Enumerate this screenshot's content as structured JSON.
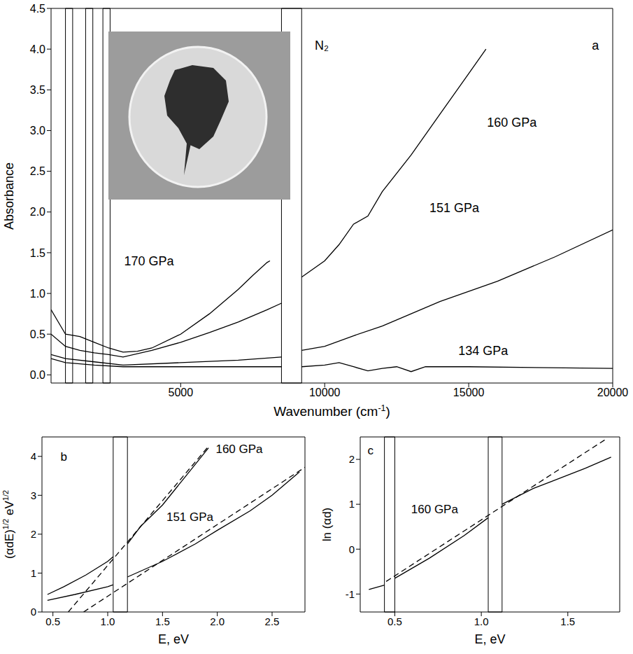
{
  "chart_data": [
    {
      "type": "line",
      "x_label": "Wavenumber (cm-1)",
      "y_label": "Absorbance",
      "grid": false,
      "xlim": [
        500,
        20000
      ],
      "xticks": [
        5000,
        10000,
        15000,
        20000
      ],
      "ylim": [
        -0.1,
        4.5
      ],
      "yticks": [
        {
          "value": 0,
          "label": "0.0"
        },
        0.5,
        {
          "value": 1,
          "label": "1.0"
        },
        1.5,
        {
          "value": 2,
          "label": "2.0"
        },
        2.5,
        {
          "value": 3,
          "label": "3.0"
        },
        3.5,
        {
          "value": 4,
          "label": "4.0"
        },
        4.5
      ],
      "masked_ranges": [
        [
          1000,
          1250
        ],
        [
          1700,
          1950
        ],
        [
          2300,
          2550
        ],
        [
          8500,
          9200
        ]
      ],
      "annotations": [
        {
          "text": "a",
          "x": 19400,
          "y": 4.05
        },
        {
          "text": "N₂",
          "x": 9900,
          "y": 4.05
        },
        {
          "text": "170 GPa",
          "x": 3900,
          "y": 1.4
        },
        {
          "text": "160 GPa",
          "x": 16500,
          "y": 3.1
        },
        {
          "text": "151 GPa",
          "x": 14500,
          "y": 2.05
        },
        {
          "text": "134 GPa",
          "x": 15500,
          "y": 0.3
        }
      ],
      "series": [
        {
          "color": "#000000",
          "line_style": "solid",
          "x": [
            500,
            1000,
            1500,
            2000,
            2500,
            3000,
            3500,
            4000,
            5000,
            6000,
            7000,
            7500,
            8000,
            8100
          ],
          "values": [
            0.8,
            0.5,
            0.47,
            0.4,
            0.33,
            0.28,
            0.29,
            0.33,
            0.5,
            0.75,
            1.05,
            1.22,
            1.38,
            1.4
          ]
        },
        {
          "color": "#000000",
          "line_style": "solid",
          "x": [
            500,
            1000,
            1500,
            2000,
            2500,
            3000,
            4000,
            5000,
            6000,
            7000,
            8000,
            8500,
            8850,
            9200,
            10000,
            10500,
            11000,
            11500,
            12000,
            13000,
            14000,
            15000,
            15600
          ],
          "values": [
            0.5,
            0.35,
            0.3,
            0.27,
            0.25,
            0.22,
            0.3,
            0.4,
            0.52,
            0.65,
            0.8,
            0.88,
            null,
            1.2,
            1.4,
            1.6,
            1.85,
            1.95,
            2.25,
            2.7,
            3.2,
            3.7,
            4.0
          ]
        },
        {
          "color": "#000000",
          "line_style": "solid",
          "x": [
            500,
            1000,
            2000,
            3000,
            5000,
            7000,
            8500,
            8850,
            9200,
            10000,
            11000,
            12000,
            13000,
            14000,
            16000,
            18000,
            20000
          ],
          "values": [
            0.25,
            0.2,
            0.16,
            0.12,
            0.15,
            0.18,
            0.22,
            null,
            0.3,
            0.35,
            0.48,
            0.6,
            0.75,
            0.9,
            1.15,
            1.45,
            1.78
          ]
        },
        {
          "color": "#000000",
          "line_style": "solid",
          "x": [
            500,
            1000,
            2000,
            3000,
            5000,
            8500,
            8850,
            9200,
            10000,
            10500,
            11000,
            11500,
            12000,
            12500,
            13000,
            13500,
            15000,
            20000
          ],
          "values": [
            0.2,
            0.15,
            0.12,
            0.1,
            0.1,
            0.1,
            null,
            0.1,
            0.12,
            0.15,
            0.1,
            0.05,
            0.08,
            0.1,
            0.04,
            0.1,
            0.1,
            0.08
          ]
        }
      ]
    },
    {
      "type": "line",
      "x_label": "E, eV",
      "y_label": "(αdE)1/2 eV1/2",
      "grid": false,
      "xlim": [
        0.4,
        2.8
      ],
      "xticks": [
        0.5,
        {
          "value": 1,
          "label": "1.0"
        },
        1.5,
        {
          "value": 2,
          "label": "2.0"
        },
        2.5
      ],
      "ylim": [
        0,
        4.5
      ],
      "yticks": [
        0,
        1,
        2,
        3,
        4
      ],
      "masked_ranges": [
        [
          1.05,
          1.18
        ]
      ],
      "annotations": [
        {
          "text": "b",
          "x": 0.6,
          "y": 4.0
        },
        {
          "text": "160 GPa",
          "x": 2.2,
          "y": 4.2
        },
        {
          "text": "151 GPa",
          "x": 1.75,
          "y": 2.45
        }
      ],
      "series": [
        {
          "color": "#000000",
          "line_style": "solid",
          "x": [
            0.45,
            0.6,
            0.8,
            1.0,
            1.05,
            1.11,
            1.18,
            1.3,
            1.5,
            1.7,
            1.92
          ],
          "values": [
            0.45,
            0.65,
            0.95,
            1.3,
            1.42,
            null,
            1.75,
            2.2,
            2.75,
            3.45,
            4.22
          ]
        },
        {
          "color": "#000000",
          "line_style": "dashed",
          "x": [
            0.64,
            1.92
          ],
          "values": [
            0,
            4.26
          ]
        },
        {
          "color": "#000000",
          "line_style": "solid",
          "x": [
            0.45,
            0.7,
            1.0,
            1.05,
            1.11,
            1.18,
            1.5,
            1.8,
            2.0,
            2.3,
            2.5,
            2.75
          ],
          "values": [
            0.3,
            0.45,
            0.65,
            0.7,
            null,
            0.9,
            1.3,
            1.75,
            2.1,
            2.6,
            3.0,
            3.6
          ]
        },
        {
          "color": "#000000",
          "line_style": "dashed",
          "x": [
            0.78,
            2.8
          ],
          "values": [
            0,
            3.72
          ]
        }
      ]
    },
    {
      "type": "line",
      "x_label": "E, eV",
      "y_label": "ln (αd)",
      "grid": false,
      "xlim": [
        0.3,
        1.8
      ],
      "xticks": [
        0.5,
        {
          "value": 1,
          "label": "1.0"
        },
        1.5
      ],
      "ylim": [
        -1.4,
        2.5
      ],
      "yticks": [
        -1,
        0,
        1,
        2
      ],
      "masked_ranges": [
        [
          0.44,
          0.5
        ],
        [
          1.04,
          1.12
        ]
      ],
      "annotations": [
        {
          "text": "c",
          "x": 0.36,
          "y": 2.2
        },
        {
          "text": "160 GPa",
          "x": 0.73,
          "y": 0.9
        }
      ],
      "series": [
        {
          "color": "#000000",
          "line_style": "solid",
          "x": [
            0.35,
            0.44,
            0.47,
            0.5,
            0.7,
            0.9,
            1.04,
            1.08,
            1.12,
            1.3,
            1.4,
            1.6,
            1.75
          ],
          "values": [
            -0.9,
            -0.8,
            null,
            -0.65,
            -0.2,
            0.3,
            0.7,
            null,
            1.0,
            1.35,
            1.5,
            1.8,
            2.05
          ]
        },
        {
          "color": "#000000",
          "line_style": "dashed",
          "x": [
            0.45,
            1.72
          ],
          "values": [
            -0.72,
            2.45
          ]
        }
      ]
    }
  ]
}
